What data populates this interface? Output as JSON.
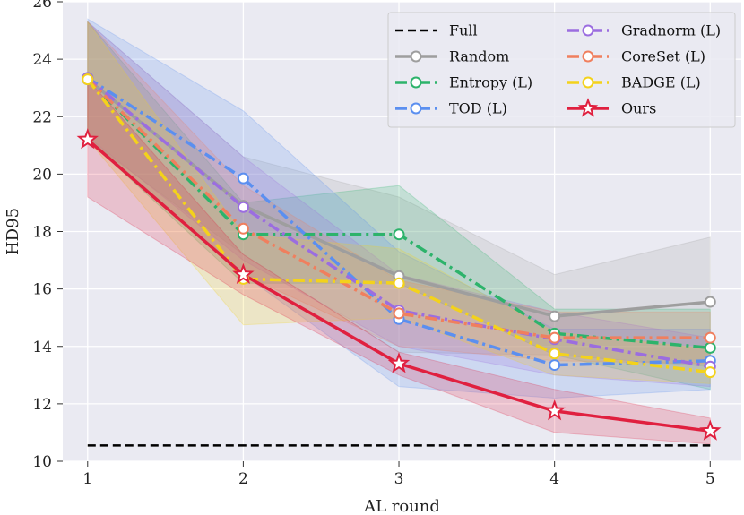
{
  "chart_data": {
    "type": "line",
    "xlabel": "AL round",
    "ylabel": "HD95",
    "x": [
      1,
      2,
      3,
      4,
      5
    ],
    "xlim": [
      0.84,
      5.2
    ],
    "ylim": [
      10,
      26
    ],
    "yticks": [
      10,
      12,
      14,
      16,
      18,
      20,
      22,
      24,
      26
    ],
    "grid": true,
    "legend": {
      "position": "top-right",
      "columns": 2
    },
    "series": [
      {
        "name": "Full",
        "color": "#000000",
        "style": "dashed",
        "marker": "none",
        "values": [
          10.55,
          10.55,
          10.55,
          10.55,
          10.55
        ]
      },
      {
        "name": "Random",
        "color": "#9e9e9e",
        "style": "solid",
        "marker": "circle",
        "values": [
          23.3,
          18.9,
          16.45,
          15.05,
          15.55
        ],
        "band_low": [
          21.2,
          17.2,
          13.8,
          13.7,
          13.3
        ],
        "band_high": [
          25.3,
          20.6,
          19.2,
          16.5,
          17.8
        ]
      },
      {
        "name": "Entropy (L)",
        "color": "#2db36b",
        "style": "dashdot",
        "marker": "circle",
        "values": [
          23.3,
          17.9,
          17.9,
          14.45,
          13.95
        ],
        "band_low": [
          21.2,
          16.2,
          16.2,
          13.7,
          12.5
        ],
        "band_high": [
          25.3,
          19.0,
          19.6,
          15.3,
          15.3
        ]
      },
      {
        "name": "TOD (L)",
        "color": "#5b8ff0",
        "style": "dashdot",
        "marker": "circle",
        "values": [
          23.35,
          19.85,
          14.95,
          13.35,
          13.5
        ],
        "band_low": [
          21.3,
          16.5,
          12.6,
          12.2,
          12.5
        ],
        "band_high": [
          25.4,
          22.2,
          17.3,
          14.6,
          14.6
        ]
      },
      {
        "name": "Gradnorm (L)",
        "color": "#9b6de0",
        "style": "dashdot",
        "marker": "circle",
        "values": [
          23.35,
          18.85,
          15.25,
          14.25,
          13.3
        ],
        "band_low": [
          21.3,
          17.0,
          14.0,
          13.0,
          12.6
        ],
        "band_high": [
          25.3,
          20.6,
          16.5,
          15.2,
          14.3
        ]
      },
      {
        "name": "CoreSet (L)",
        "color": "#f07f5e",
        "style": "dashdot",
        "marker": "circle",
        "values": [
          23.3,
          18.1,
          15.15,
          14.3,
          14.3
        ],
        "band_low": [
          21.2,
          16.5,
          14.0,
          13.5,
          13.4
        ],
        "band_high": [
          25.3,
          19.6,
          16.3,
          15.2,
          15.2
        ]
      },
      {
        "name": "BADGE (L)",
        "color": "#f3d21b",
        "style": "dashdot",
        "marker": "circle",
        "values": [
          23.3,
          16.35,
          16.2,
          13.75,
          13.1
        ],
        "band_low": [
          21.2,
          14.75,
          15.0,
          13.0,
          12.7
        ],
        "band_high": [
          25.3,
          17.9,
          17.4,
          14.5,
          13.9
        ]
      },
      {
        "name": "Ours",
        "color": "#e0203f",
        "style": "solid",
        "marker": "star",
        "values": [
          21.2,
          16.5,
          13.4,
          11.75,
          11.05
        ],
        "band_low": [
          19.2,
          15.8,
          13.0,
          11.0,
          10.6
        ],
        "band_high": [
          23.3,
          17.2,
          13.8,
          12.5,
          11.5
        ]
      }
    ]
  }
}
